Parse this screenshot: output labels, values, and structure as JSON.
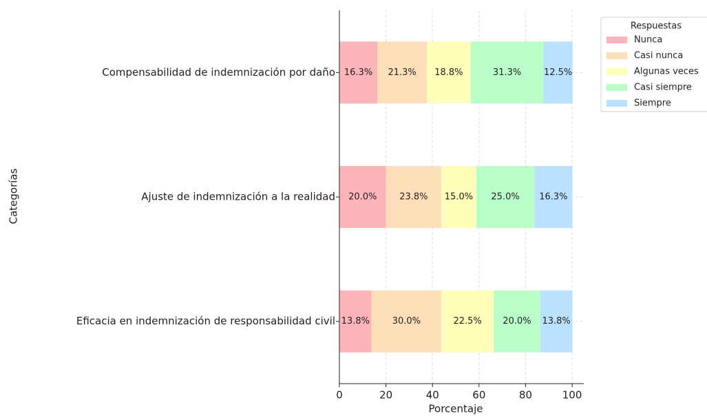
{
  "chart_data": {
    "type": "stacked_barh",
    "xlabel": "Porcentaje",
    "ylabel": "Categorías",
    "categories": [
      "Compensabilidad de indemnización por daño",
      "Ajuste de indemnización a la realidad",
      "Eficacia en indemnización de responsabilidad civil"
    ],
    "series": [
      {
        "name": "Nunca",
        "color": "#ffb3ba",
        "values": [
          16.3,
          20.0,
          13.8
        ],
        "value_labels": [
          "16.3%",
          "20.0%",
          "13.8%"
        ]
      },
      {
        "name": "Casi nunca",
        "color": "#ffdfba",
        "values": [
          21.3,
          23.8,
          30.0
        ],
        "value_labels": [
          "21.3%",
          "23.8%",
          "30.0%"
        ]
      },
      {
        "name": "Algunas veces",
        "color": "#ffffba",
        "values": [
          18.8,
          15.0,
          22.5
        ],
        "value_labels": [
          "18.8%",
          "15.0%",
          "22.5%"
        ]
      },
      {
        "name": "Casi siempre",
        "color": "#baffc9",
        "values": [
          31.3,
          25.0,
          20.0
        ],
        "value_labels": [
          "31.3%",
          "25.0%",
          "20.0%"
        ]
      },
      {
        "name": "Siempre",
        "color": "#bae1ff",
        "values": [
          12.5,
          16.3,
          13.8
        ],
        "value_labels": [
          "12.5%",
          "16.3%",
          "13.8%"
        ]
      }
    ],
    "xlim": [
      0,
      105
    ],
    "xticks": [
      0,
      20,
      40,
      60,
      80,
      100
    ],
    "grid": true,
    "legend_title": "Respuestas",
    "legend": "upper right"
  }
}
